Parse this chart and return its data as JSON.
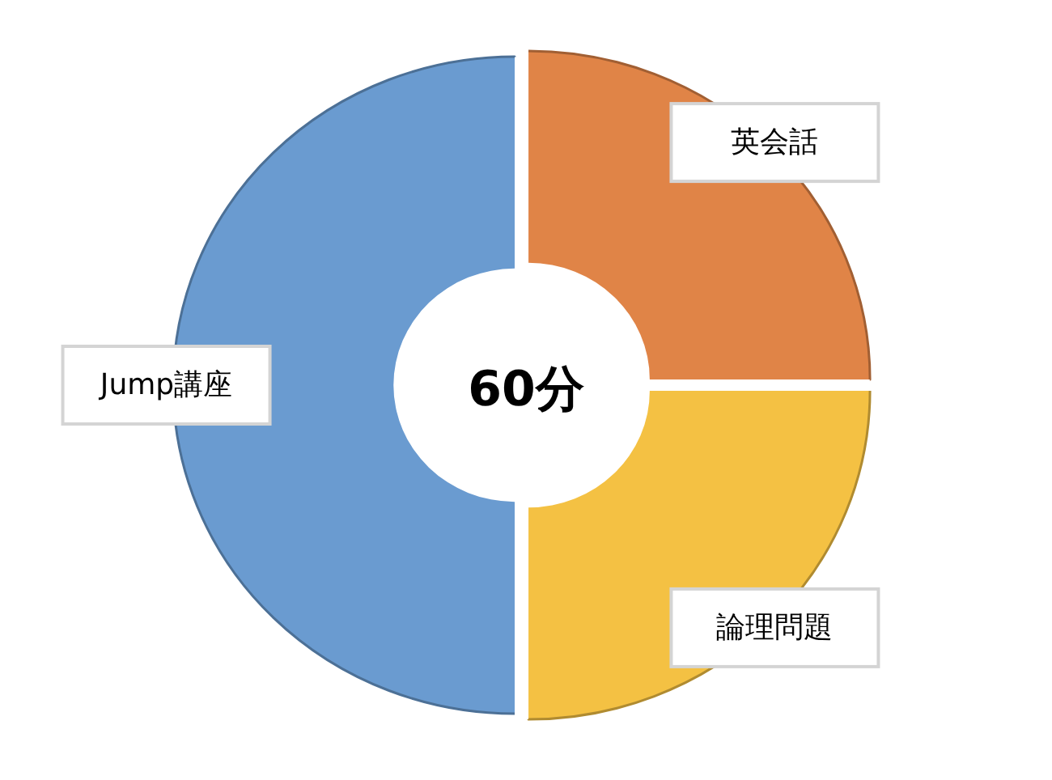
{
  "chart_data": {
    "type": "donut",
    "categories": [
      "英会話",
      "論理問題",
      "Jump講座"
    ],
    "values": [
      25,
      25,
      50
    ],
    "colors": [
      "#e08447",
      "#f4c143",
      "#6a9bd0"
    ],
    "annotations": [
      "60分"
    ]
  }
}
